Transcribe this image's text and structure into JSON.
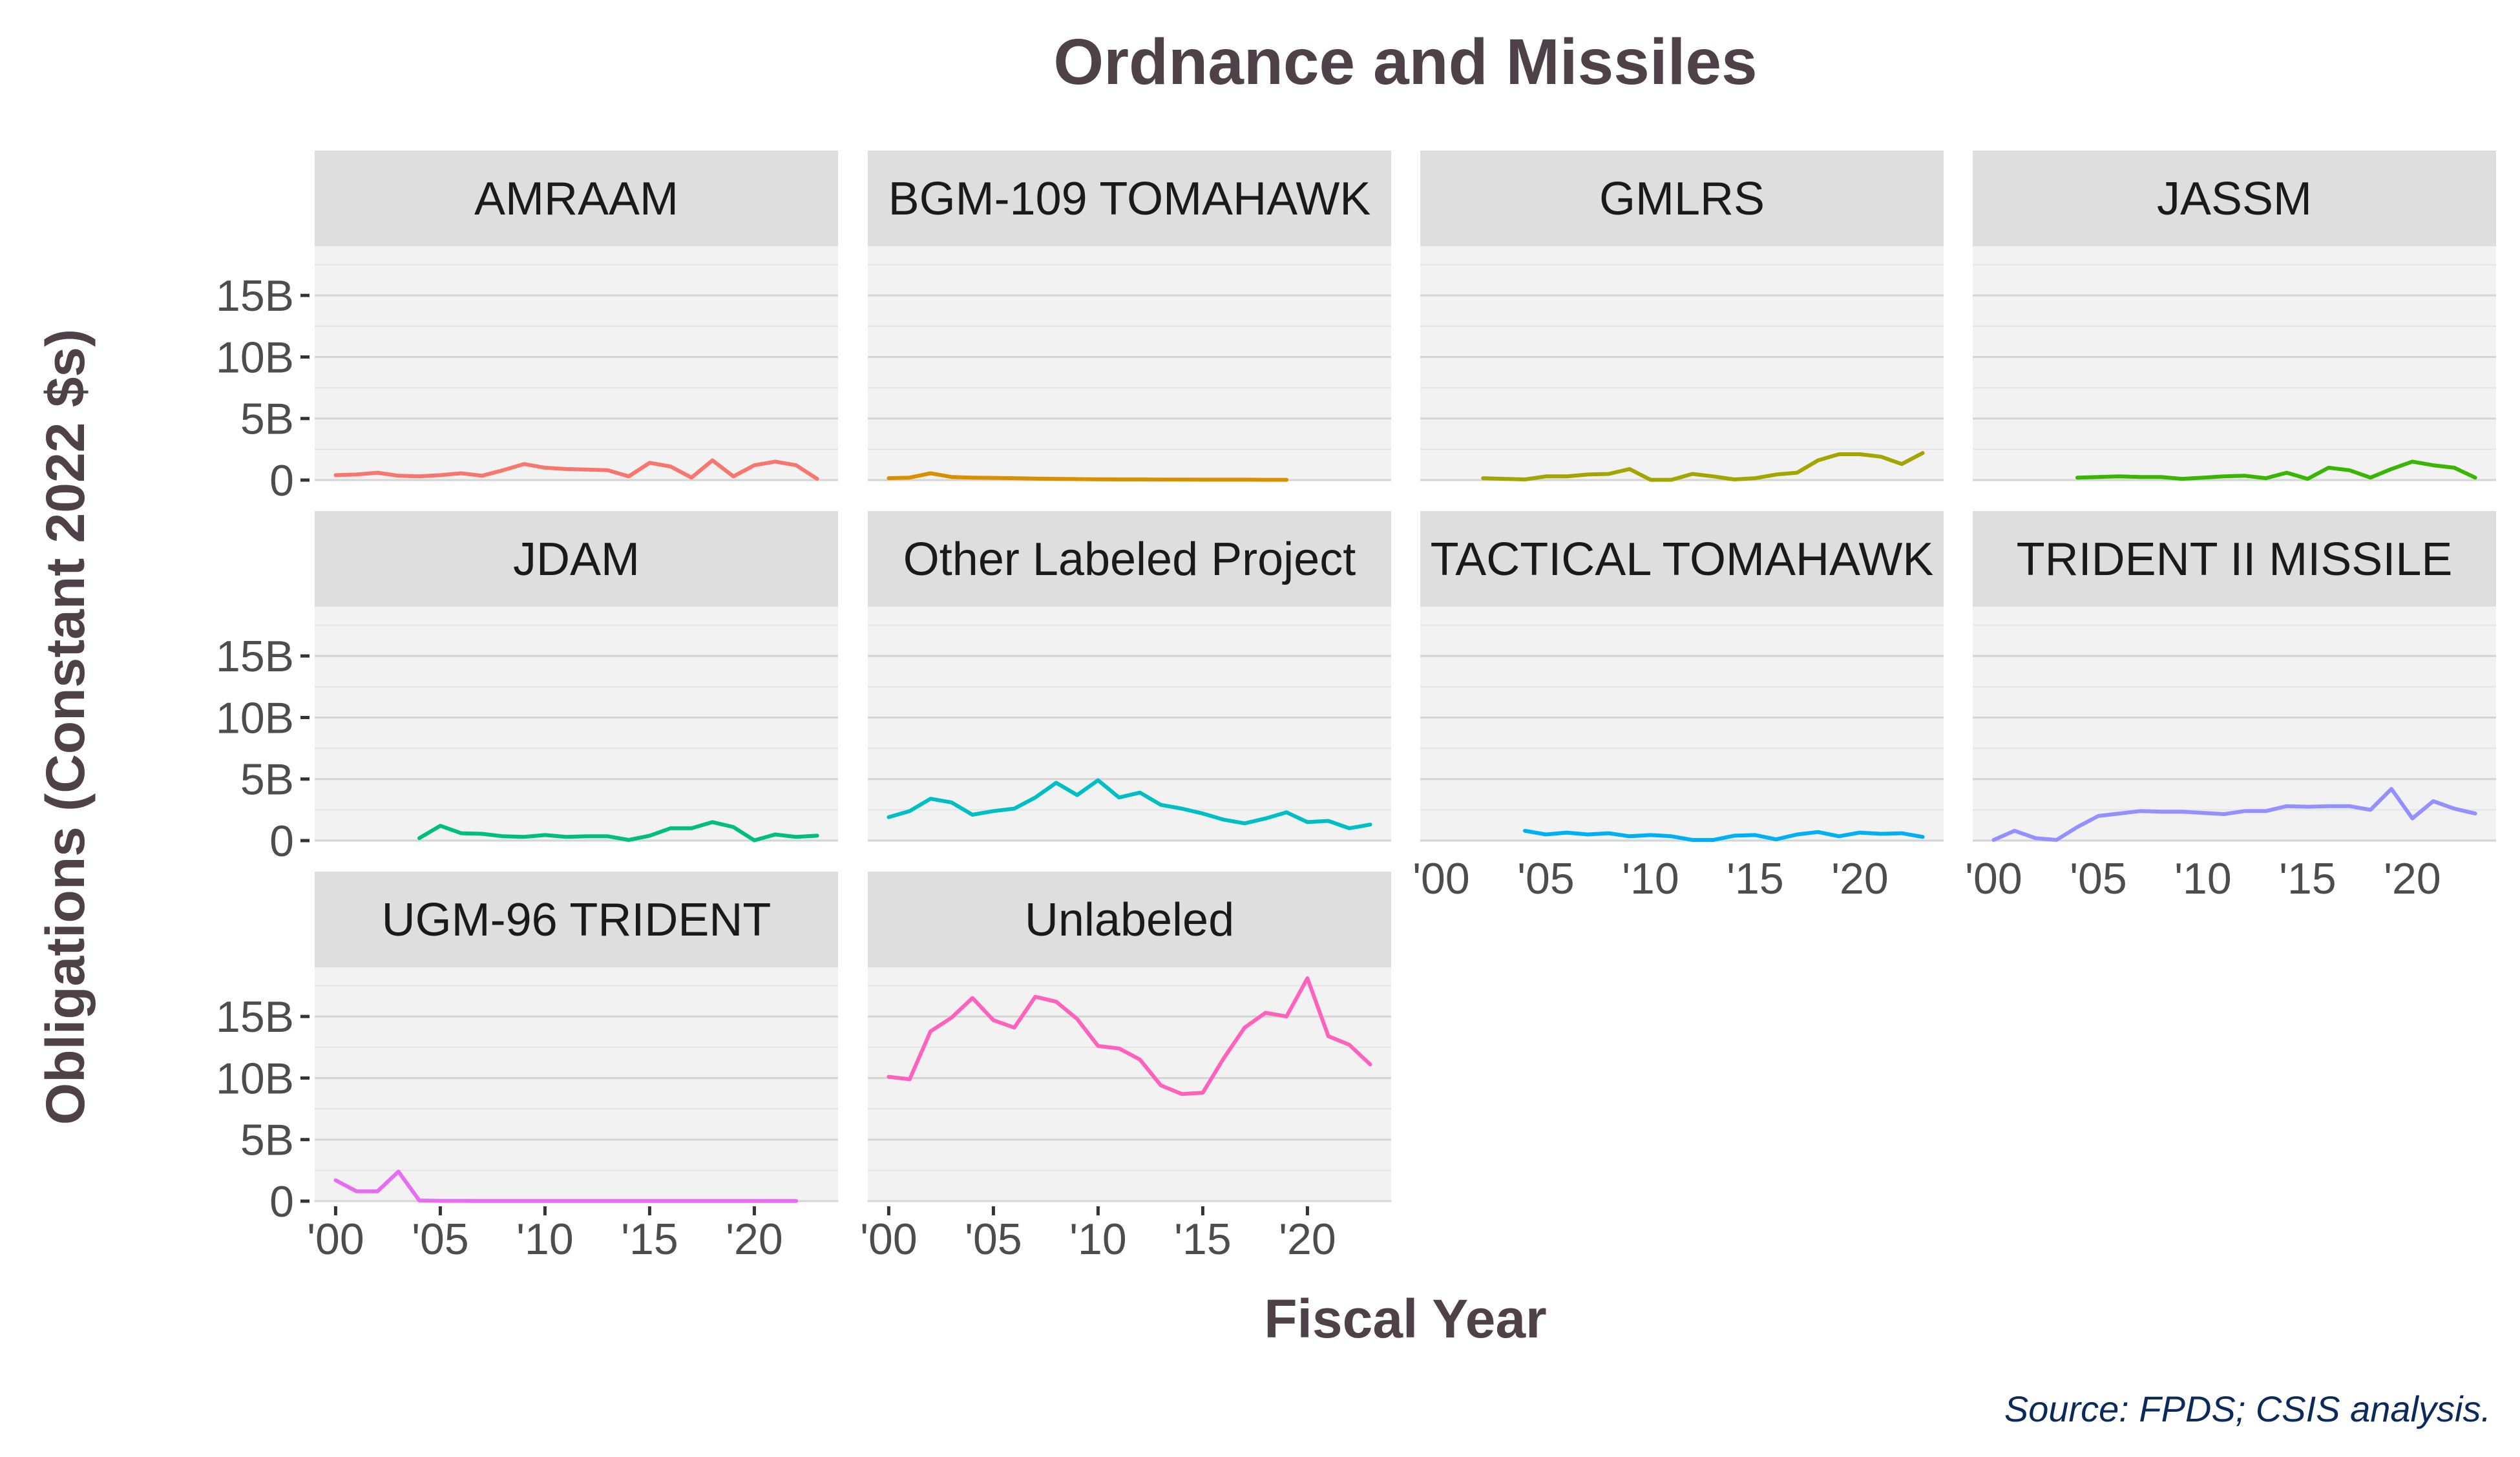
{
  "chart_data": {
    "type": "line",
    "title": "Ordnance and Missiles",
    "xlabel": "Fiscal Year",
    "ylabel": "Obligations (Constant 2022 $s)",
    "caption": "Source: FPDS; CSIS analysis.",
    "x_ticks": [
      "'00",
      "'05",
      "'10",
      "'15",
      "'20"
    ],
    "y_ticks": [
      "0",
      "5B",
      "10B",
      "15B"
    ],
    "xlim": [
      1999,
      2024
    ],
    "ylim": [
      0,
      19000000000
    ],
    "grid": true,
    "legend": "none",
    "panels": [
      {
        "name": "AMRAAM",
        "color": "#F8766D",
        "x": [
          2000,
          2001,
          2002,
          2003,
          2004,
          2005,
          2006,
          2007,
          2008,
          2009,
          2010,
          2011,
          2012,
          2013,
          2014,
          2015,
          2016,
          2017,
          2018,
          2019,
          2020,
          2021,
          2022,
          2023
        ],
        "values": [
          400000000.0,
          450000000.0,
          600000000.0,
          350000000.0,
          300000000.0,
          400000000.0,
          550000000.0,
          350000000.0,
          800000000.0,
          1300000000.0,
          1000000000.0,
          900000000.0,
          850000000.0,
          800000000.0,
          300000000.0,
          1400000000.0,
          1100000000.0,
          200000000.0,
          1600000000.0,
          300000000.0,
          1200000000.0,
          1500000000.0,
          1200000000.0,
          100000000.0
        ]
      },
      {
        "name": "BGM-109 TOMAHAWK",
        "color": "#D89000",
        "x": [
          2000,
          2001,
          2002,
          2003,
          2004,
          2005,
          2006,
          2007,
          2008,
          2009,
          2010,
          2011,
          2012,
          2013,
          2014,
          2015,
          2016,
          2017,
          2018,
          2019
        ],
        "values": [
          150000000.0,
          200000000.0,
          550000000.0,
          250000000.0,
          200000000.0,
          180000000.0,
          150000000.0,
          120000000.0,
          100000000.0,
          80000000.0,
          60000000.0,
          50000000.0,
          50000000.0,
          40000000.0,
          40000000.0,
          30000000.0,
          30000000.0,
          30000000.0,
          20000000.0,
          20000000.0
        ]
      },
      {
        "name": "GMLRS",
        "color": "#A3A500",
        "x": [
          2002,
          2003,
          2004,
          2005,
          2006,
          2007,
          2008,
          2009,
          2010,
          2011,
          2012,
          2013,
          2014,
          2015,
          2016,
          2017,
          2018,
          2019,
          2020,
          2021,
          2022,
          2023
        ],
        "values": [
          150000000.0,
          100000000.0,
          50000000.0,
          300000000.0,
          300000000.0,
          450000000.0,
          500000000.0,
          900000000.0,
          20000000.0,
          20000000.0,
          500000000.0,
          300000000.0,
          50000000.0,
          150000000.0,
          450000000.0,
          600000000.0,
          1600000000.0,
          2100000000.0,
          2100000000.0,
          1900000000.0,
          1300000000.0,
          2200000000.0
        ]
      },
      {
        "name": "JASSM",
        "color": "#39B600",
        "x": [
          2004,
          2005,
          2006,
          2007,
          2008,
          2009,
          2010,
          2011,
          2012,
          2013,
          2014,
          2015,
          2016,
          2017,
          2018,
          2019,
          2020,
          2021,
          2022,
          2023
        ],
        "values": [
          200000000.0,
          250000000.0,
          300000000.0,
          250000000.0,
          250000000.0,
          100000000.0,
          200000000.0,
          300000000.0,
          350000000.0,
          150000000.0,
          600000000.0,
          100000000.0,
          1000000000.0,
          800000000.0,
          200000000.0,
          900000000.0,
          1500000000.0,
          1200000000.0,
          1000000000.0,
          200000000.0
        ]
      },
      {
        "name": "JDAM",
        "color": "#00BF7D",
        "x": [
          2004,
          2005,
          2006,
          2007,
          2008,
          2009,
          2010,
          2011,
          2012,
          2013,
          2014,
          2015,
          2016,
          2017,
          2018,
          2019,
          2020,
          2021,
          2022,
          2023
        ],
        "values": [
          200000000.0,
          1200000000.0,
          600000000.0,
          550000000.0,
          350000000.0,
          300000000.0,
          450000000.0,
          300000000.0,
          350000000.0,
          350000000.0,
          50000000.0,
          400000000.0,
          1000000000.0,
          1000000000.0,
          1500000000.0,
          1100000000.0,
          20000000.0,
          500000000.0,
          300000000.0,
          400000000.0
        ]
      },
      {
        "name": "Other Labeled Project",
        "color": "#00BFC4",
        "x": [
          2000,
          2001,
          2002,
          2003,
          2004,
          2005,
          2006,
          2007,
          2008,
          2009,
          2010,
          2011,
          2012,
          2013,
          2014,
          2015,
          2016,
          2017,
          2018,
          2019,
          2020,
          2021,
          2022,
          2023
        ],
        "values": [
          1900000000.0,
          2400000000.0,
          3400000000.0,
          3100000000.0,
          2100000000.0,
          2400000000.0,
          2600000000.0,
          3500000000.0,
          4700000000.0,
          3700000000.0,
          4900000000.0,
          3500000000.0,
          3900000000.0,
          2900000000.0,
          2600000000.0,
          2200000000.0,
          1700000000.0,
          1400000000.0,
          1800000000.0,
          2300000000.0,
          1500000000.0,
          1600000000.0,
          1000000000.0,
          1300000000.0
        ]
      },
      {
        "name": "TACTICAL TOMAHAWK",
        "color": "#00B0F6",
        "x": [
          2004,
          2005,
          2006,
          2007,
          2008,
          2009,
          2010,
          2011,
          2012,
          2013,
          2014,
          2015,
          2016,
          2017,
          2018,
          2019,
          2020,
          2021,
          2022,
          2023
        ],
        "values": [
          800000000.0,
          500000000.0,
          650000000.0,
          500000000.0,
          600000000.0,
          350000000.0,
          450000000.0,
          350000000.0,
          50000000.0,
          50000000.0,
          400000000.0,
          450000000.0,
          100000000.0,
          500000000.0,
          700000000.0,
          350000000.0,
          650000000.0,
          550000000.0,
          600000000.0,
          300000000.0
        ]
      },
      {
        "name": "TRIDENT II MISSILE",
        "color": "#9590FF",
        "x": [
          2000,
          2001,
          2002,
          2003,
          2004,
          2005,
          2006,
          2007,
          2008,
          2009,
          2010,
          2011,
          2012,
          2013,
          2014,
          2015,
          2016,
          2017,
          2018,
          2019,
          2020,
          2021,
          2022,
          2023
        ],
        "values": [
          50000000.0,
          800000000.0,
          200000000.0,
          50000000.0,
          1100000000.0,
          2000000000.0,
          2200000000.0,
          2400000000.0,
          2350000000.0,
          2350000000.0,
          2250000000.0,
          2150000000.0,
          2400000000.0,
          2400000000.0,
          2800000000.0,
          2750000000.0,
          2800000000.0,
          2800000000.0,
          2500000000.0,
          4200000000.0,
          1800000000.0,
          3200000000.0,
          2600000000.0,
          2200000000.0
        ]
      },
      {
        "name": "UGM-96 TRIDENT",
        "color": "#E76BF3",
        "x": [
          2000,
          2001,
          2002,
          2003,
          2004,
          2005,
          2006,
          2007,
          2008,
          2009,
          2010,
          2011,
          2012,
          2013,
          2014,
          2015,
          2016,
          2017,
          2018,
          2019,
          2020,
          2021,
          2022
        ],
        "values": [
          1700000000.0,
          800000000.0,
          800000000.0,
          2400000000.0,
          50000000.0,
          20000000.0,
          20000000.0,
          10000000.0,
          10000000.0,
          10000000.0,
          10000000.0,
          10000000.0,
          10000000.0,
          10000000.0,
          10000000.0,
          10000000.0,
          10000000.0,
          10000000.0,
          10000000.0,
          10000000.0,
          10000000.0,
          10000000.0,
          10000000.0
        ]
      },
      {
        "name": "Unlabeled",
        "color": "#FF62BC",
        "x": [
          2000,
          2001,
          2002,
          2003,
          2004,
          2005,
          2006,
          2007,
          2008,
          2009,
          2010,
          2011,
          2012,
          2013,
          2014,
          2015,
          2016,
          2017,
          2018,
          2019,
          2020,
          2021,
          2022,
          2023
        ],
        "values": [
          10100000000.0,
          9900000000.0,
          13800000000.0,
          14900000000.0,
          16500000000.0,
          14700000000.0,
          14100000000.0,
          16600000000.0,
          16200000000.0,
          14800000000.0,
          12600000000.0,
          12400000000.0,
          11500000000.0,
          9400000000.0,
          8700000000.0,
          8800000000.0,
          11600000000.0,
          14100000000.0,
          15300000000.0,
          15000000000.0,
          18100000000.0,
          13400000000.0,
          12700000000.0,
          11100000000.0
        ]
      }
    ]
  }
}
